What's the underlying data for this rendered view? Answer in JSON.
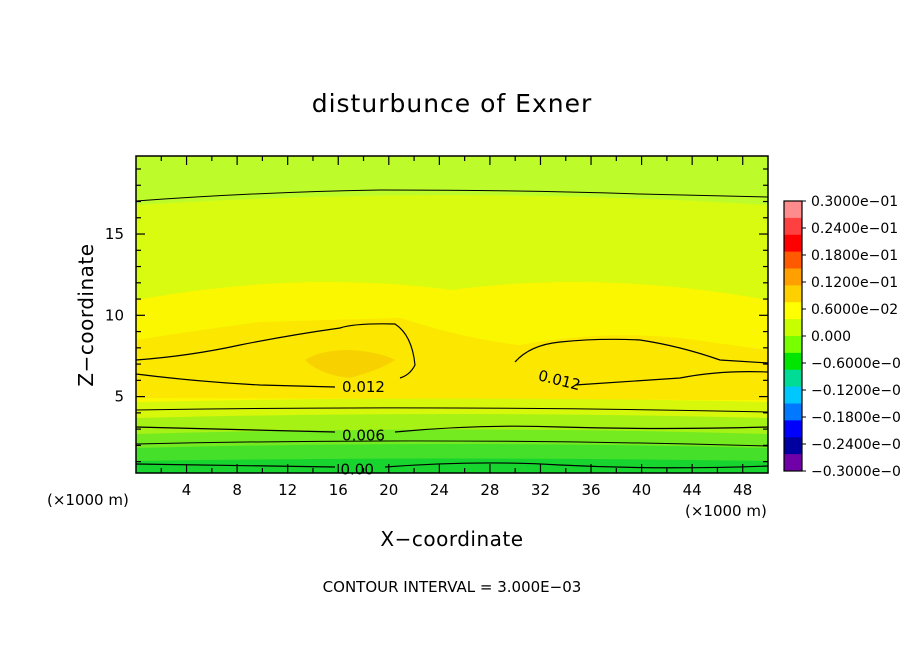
{
  "chart_data": {
    "type": "heatmap",
    "title": "disturbunce of Exner",
    "xlabel": "X−coordinate",
    "ylabel": "Z−coordinate",
    "x_unit_left": "(×1000 m)",
    "x_unit_right": "(×1000 m)",
    "xlim": [
      0,
      50
    ],
    "ylim": [
      0.3,
      19.8
    ],
    "x_ticks": [
      "4",
      "8",
      "12",
      "16",
      "20",
      "24",
      "28",
      "32",
      "36",
      "40",
      "44",
      "48"
    ],
    "x_tick_values": [
      4,
      8,
      12,
      16,
      20,
      24,
      28,
      32,
      36,
      40,
      44,
      48
    ],
    "y_ticks": [
      "5",
      "10",
      "15"
    ],
    "y_tick_values": [
      5,
      10,
      15
    ],
    "contour_interval_text": "CONTOUR INTERVAL = 3.000E−03",
    "contour_interval": 0.003,
    "contour_labels": [
      {
        "text": "0.012",
        "x": 18,
        "z": 5.6
      },
      {
        "text": "0.012",
        "x": 33.5,
        "z": 6.0
      },
      {
        "text": "0.006",
        "x": 18,
        "z": 2.6
      },
      {
        "text": "0.00",
        "x": 17.5,
        "z": 0.5
      }
    ],
    "colorbar": {
      "labels": [
        "0.3000e−01",
        "0.2400e−01",
        "0.1800e−01",
        "0.1200e−01",
        "0.6000e−02",
        "0.000",
        "−0.6000e−0",
        "−0.1200e−0",
        "−0.1800e−0",
        "−0.2400e−0",
        "−0.3000e−0"
      ],
      "values": [
        0.03,
        0.024,
        0.018,
        0.012,
        0.006,
        0.0,
        -0.006,
        -0.012,
        -0.018,
        -0.024,
        -0.03
      ],
      "colors": [
        "#ff8c8c",
        "#ff4040",
        "#ff0000",
        "#ff5a00",
        "#ffa000",
        "#ffd000",
        "#ffff00",
        "#c8ff00",
        "#78ff00",
        "#00e600",
        "#00dc96",
        "#00c8ff",
        "#0078ff",
        "#0000ff",
        "#0000a0",
        "#7000a8"
      ]
    }
  }
}
